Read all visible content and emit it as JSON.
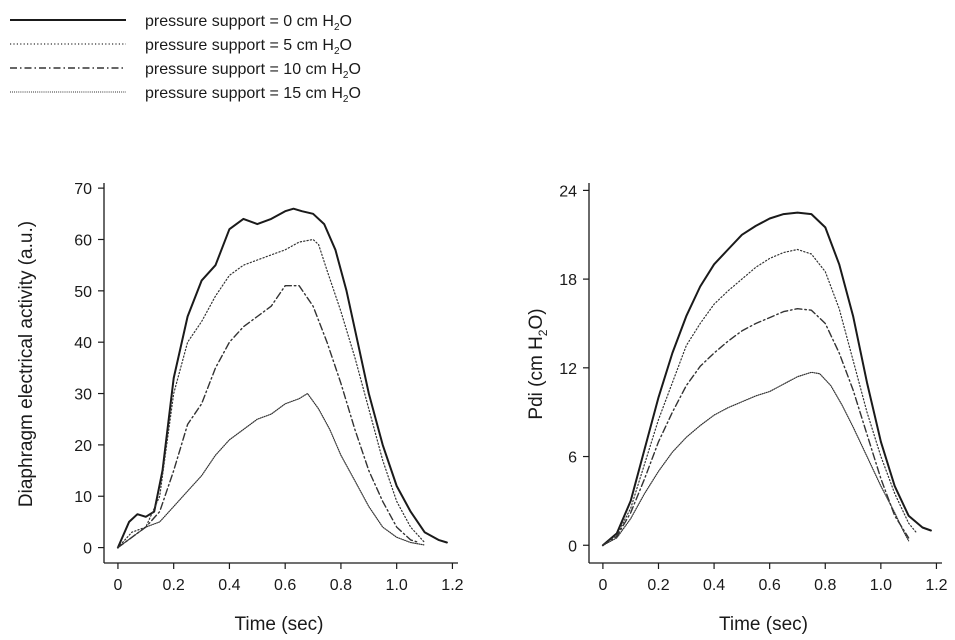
{
  "legend": {
    "entries": [
      {
        "label": "pressure support = 0 cm H",
        "sub": "2",
        "tail": "O",
        "style": "solid"
      },
      {
        "label": "pressure support = 5 cm H",
        "sub": "2",
        "tail": "O",
        "style": "dotted"
      },
      {
        "label": "pressure support = 10 cm H",
        "sub": "2",
        "tail": "O",
        "style": "dashdot"
      },
      {
        "label": "pressure support = 15 cm H",
        "sub": "2",
        "tail": "O",
        "style": "densedot"
      }
    ]
  },
  "chart_data": [
    {
      "type": "line",
      "xlabel": "Time (sec)",
      "ylabel": "Diaphragm electrical activity (a.u.)",
      "xlim": [
        -0.05,
        1.22
      ],
      "ylim": [
        -3,
        71
      ],
      "xticks": [
        0,
        0.2,
        0.4,
        0.6,
        0.8,
        1.0,
        1.2
      ],
      "xtick_labels": [
        "0",
        "0.2",
        "0.4",
        "0.6",
        "0.8",
        "1.0",
        "1.2"
      ],
      "yticks": [
        0,
        10,
        20,
        30,
        40,
        50,
        60,
        70
      ],
      "ytick_labels": [
        "0",
        "10",
        "20",
        "30",
        "40",
        "50",
        "60",
        "70"
      ],
      "series": [
        {
          "style": "solid",
          "x": [
            0,
            0.04,
            0.07,
            0.1,
            0.13,
            0.16,
            0.2,
            0.25,
            0.3,
            0.35,
            0.4,
            0.45,
            0.5,
            0.55,
            0.6,
            0.63,
            0.66,
            0.7,
            0.74,
            0.78,
            0.82,
            0.86,
            0.9,
            0.95,
            1.0,
            1.05,
            1.1,
            1.15,
            1.18
          ],
          "y": [
            0,
            5,
            6.5,
            6,
            7,
            15,
            33,
            45,
            52,
            55,
            62,
            64,
            63,
            64,
            65.5,
            66,
            65.5,
            65,
            63,
            58,
            50,
            40,
            30,
            20,
            12,
            7,
            3,
            1.5,
            1
          ]
        },
        {
          "style": "dotted",
          "x": [
            0,
            0.05,
            0.1,
            0.15,
            0.2,
            0.25,
            0.3,
            0.35,
            0.4,
            0.45,
            0.5,
            0.55,
            0.6,
            0.65,
            0.7,
            0.72,
            0.75,
            0.8,
            0.85,
            0.9,
            0.95,
            1.0,
            1.05,
            1.1
          ],
          "y": [
            0,
            3,
            4,
            10,
            30,
            40,
            44,
            49,
            53,
            55,
            56,
            57,
            58,
            59.5,
            60,
            59,
            54,
            46,
            37,
            27,
            17,
            9,
            4,
            1
          ]
        },
        {
          "style": "dashdot",
          "x": [
            0,
            0.05,
            0.1,
            0.15,
            0.2,
            0.25,
            0.3,
            0.35,
            0.4,
            0.45,
            0.5,
            0.55,
            0.6,
            0.65,
            0.7,
            0.75,
            0.8,
            0.85,
            0.9,
            0.95,
            1.0,
            1.05,
            1.08
          ],
          "y": [
            0,
            2,
            4,
            7,
            15,
            24,
            28,
            35,
            40,
            43,
            45,
            47,
            51,
            51,
            47,
            40,
            32,
            23,
            15,
            9,
            4,
            1.5,
            1
          ]
        },
        {
          "style": "densedot",
          "x": [
            0,
            0.05,
            0.1,
            0.15,
            0.2,
            0.25,
            0.3,
            0.35,
            0.4,
            0.45,
            0.5,
            0.55,
            0.6,
            0.65,
            0.68,
            0.72,
            0.76,
            0.8,
            0.85,
            0.9,
            0.95,
            1.0,
            1.05,
            1.1
          ],
          "y": [
            0,
            2,
            4,
            5,
            8,
            11,
            14,
            18,
            21,
            23,
            25,
            26,
            28,
            29,
            30,
            27,
            23,
            18,
            13,
            8,
            4,
            2,
            1,
            0.5
          ]
        }
      ]
    },
    {
      "type": "line",
      "xlabel": "Time (sec)",
      "ylabel": "Pdi (cm H",
      "ylabel_sub": "2",
      "ylabel_tail": "O)",
      "xlim": [
        -0.05,
        1.22
      ],
      "ylim": [
        -1.2,
        24.5
      ],
      "xticks": [
        0,
        0.2,
        0.4,
        0.6,
        0.8,
        1.0,
        1.2
      ],
      "xtick_labels": [
        "0",
        "0.2",
        "0.4",
        "0.6",
        "0.8",
        "1.0",
        "1.2"
      ],
      "yticks": [
        0,
        6,
        12,
        18,
        24
      ],
      "ytick_labels": [
        "0",
        "6",
        "12",
        "18",
        "24"
      ],
      "series": [
        {
          "style": "solid",
          "x": [
            0,
            0.05,
            0.1,
            0.15,
            0.2,
            0.25,
            0.3,
            0.35,
            0.4,
            0.45,
            0.5,
            0.55,
            0.6,
            0.65,
            0.7,
            0.75,
            0.8,
            0.85,
            0.9,
            0.95,
            1.0,
            1.05,
            1.1,
            1.15,
            1.18
          ],
          "y": [
            0,
            0.8,
            3,
            6.5,
            10,
            13,
            15.5,
            17.5,
            19,
            20,
            21,
            21.6,
            22.1,
            22.4,
            22.5,
            22.4,
            21.5,
            19,
            15.5,
            11,
            7,
            4,
            2,
            1.2,
            1
          ]
        },
        {
          "style": "dotted",
          "x": [
            0,
            0.05,
            0.1,
            0.15,
            0.2,
            0.25,
            0.3,
            0.35,
            0.4,
            0.45,
            0.5,
            0.55,
            0.6,
            0.65,
            0.7,
            0.75,
            0.8,
            0.85,
            0.9,
            0.95,
            1.0,
            1.05,
            1.1,
            1.13
          ],
          "y": [
            0,
            0.7,
            2.5,
            5.5,
            8.5,
            11,
            13.5,
            15,
            16.3,
            17.2,
            18,
            18.8,
            19.4,
            19.8,
            20,
            19.7,
            18.5,
            16,
            12.5,
            9,
            6,
            3.5,
            1.5,
            0.8
          ]
        },
        {
          "style": "dashdot",
          "x": [
            0,
            0.05,
            0.1,
            0.15,
            0.2,
            0.25,
            0.3,
            0.35,
            0.4,
            0.45,
            0.5,
            0.55,
            0.6,
            0.65,
            0.7,
            0.75,
            0.8,
            0.85,
            0.9,
            0.95,
            1.0,
            1.05,
            1.1
          ],
          "y": [
            0,
            0.6,
            2.2,
            4.5,
            7,
            9,
            10.8,
            12.1,
            13,
            13.8,
            14.5,
            15,
            15.4,
            15.8,
            16,
            15.9,
            15,
            13,
            10.5,
            7.5,
            4.5,
            2,
            0.5
          ]
        },
        {
          "style": "densedot",
          "x": [
            0,
            0.05,
            0.1,
            0.15,
            0.2,
            0.25,
            0.3,
            0.35,
            0.4,
            0.45,
            0.5,
            0.55,
            0.6,
            0.65,
            0.7,
            0.75,
            0.78,
            0.82,
            0.86,
            0.9,
            0.95,
            1.0,
            1.05,
            1.08,
            1.1
          ],
          "y": [
            0,
            0.5,
            1.8,
            3.5,
            5,
            6.3,
            7.3,
            8.1,
            8.8,
            9.3,
            9.7,
            10.1,
            10.4,
            10.9,
            11.4,
            11.7,
            11.6,
            10.8,
            9.5,
            8,
            6,
            4,
            2.2,
            1,
            0.3
          ]
        }
      ]
    }
  ]
}
